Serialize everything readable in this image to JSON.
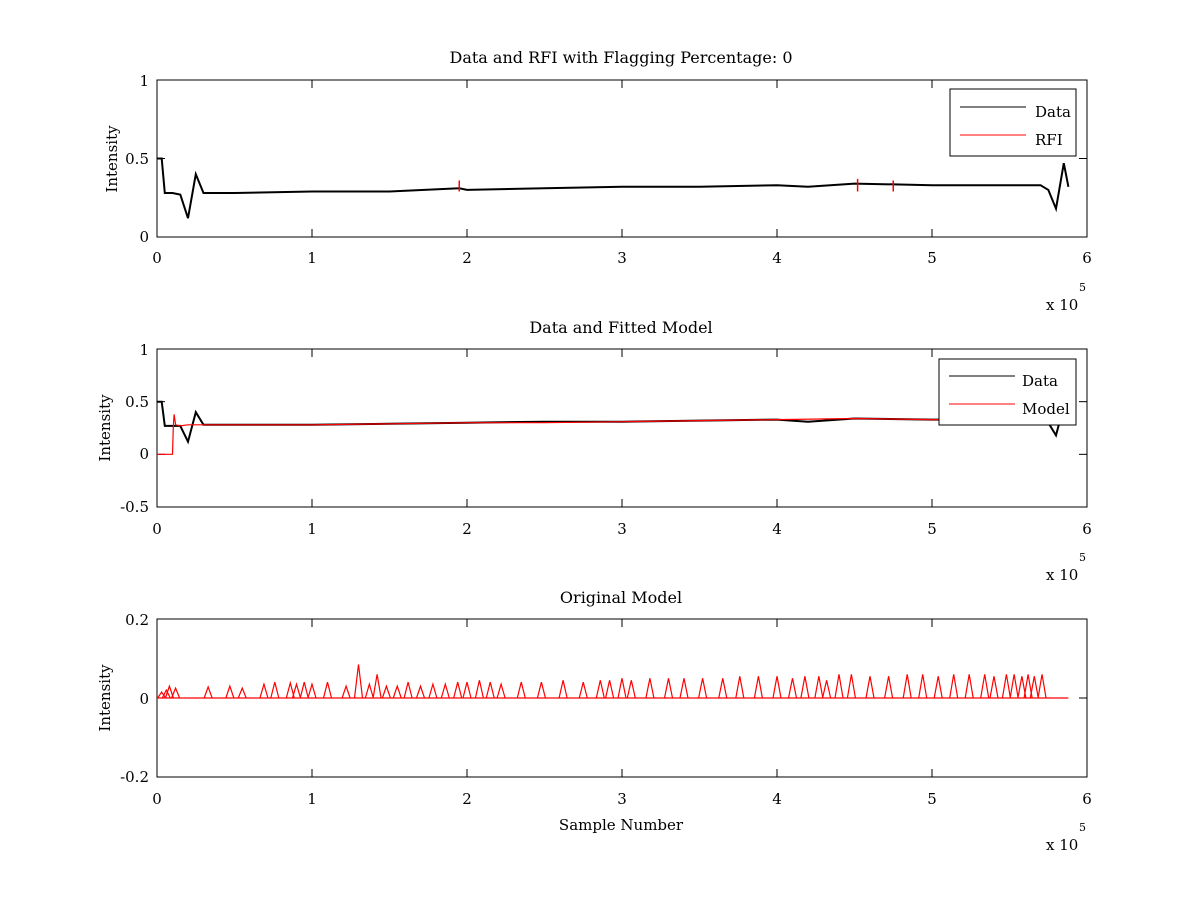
{
  "colors": {
    "data": "#000000",
    "rfi": "#ff0000",
    "axes": "#000000",
    "background": "#ffffff"
  },
  "chart_data": [
    {
      "type": "line",
      "title": "Data and RFI with Flagging Percentage: 0",
      "xlabel": "",
      "ylabel": "Intensity",
      "xlim": [
        0,
        600000
      ],
      "ylim": [
        0,
        1
      ],
      "x_ticks": [
        0,
        1,
        2,
        3,
        4,
        5,
        6
      ],
      "y_ticks": [
        "0",
        "0.5",
        "1"
      ],
      "y_tick_values": [
        0,
        0.5,
        1
      ],
      "x_exponent": {
        "base": "x 10",
        "power": "5"
      },
      "legend": {
        "placement": "top-right",
        "entries": [
          "Data",
          "RFI"
        ]
      },
      "grid": false,
      "series": [
        {
          "name": "Data",
          "color": "#000000",
          "x": [
            0,
            3000,
            5000,
            10000,
            15000,
            20000,
            25000,
            30000,
            50000,
            100000,
            150000,
            195000,
            200000,
            250000,
            300000,
            350000,
            400000,
            420000,
            450000,
            500000,
            550000,
            570000,
            575000,
            580000,
            585000,
            588000
          ],
          "y": [
            0.5,
            0.5,
            0.28,
            0.28,
            0.27,
            0.12,
            0.4,
            0.28,
            0.28,
            0.29,
            0.29,
            0.31,
            0.3,
            0.31,
            0.32,
            0.32,
            0.33,
            0.32,
            0.34,
            0.33,
            0.33,
            0.33,
            0.3,
            0.18,
            0.47,
            0.32
          ]
        },
        {
          "name": "RFI",
          "color": "#ff0000",
          "x": [
            195000,
            452000,
            475000
          ],
          "y": [
            0.36,
            0.37,
            0.36
          ]
        }
      ]
    },
    {
      "type": "line",
      "title": "Data and Fitted Model",
      "xlabel": "",
      "ylabel": "Intensity",
      "xlim": [
        0,
        600000
      ],
      "ylim": [
        -0.5,
        1
      ],
      "x_ticks": [
        0,
        1,
        2,
        3,
        4,
        5,
        6
      ],
      "y_ticks": [
        "-0.5",
        "0",
        "0.5",
        "1"
      ],
      "y_tick_values": [
        -0.5,
        0,
        0.5,
        1
      ],
      "x_exponent": {
        "base": "x 10",
        "power": "5"
      },
      "legend": {
        "placement": "top-right",
        "entries": [
          "Data",
          "Model"
        ]
      },
      "grid": false,
      "series": [
        {
          "name": "Data",
          "color": "#000000",
          "x": [
            0,
            3000,
            5000,
            10000,
            15000,
            20000,
            25000,
            30000,
            50000,
            100000,
            150000,
            200000,
            250000,
            300000,
            350000,
            400000,
            420000,
            450000,
            500000,
            550000,
            570000,
            575000,
            580000,
            585000,
            588000
          ],
          "y": [
            0.5,
            0.5,
            0.27,
            0.27,
            0.27,
            0.12,
            0.4,
            0.28,
            0.28,
            0.28,
            0.29,
            0.3,
            0.31,
            0.31,
            0.32,
            0.33,
            0.31,
            0.34,
            0.33,
            0.33,
            0.33,
            0.3,
            0.18,
            0.46,
            0.32
          ]
        },
        {
          "name": "Model",
          "color": "#ff0000",
          "x": [
            0,
            10000,
            10500,
            11000,
            12000,
            15000,
            20000,
            50000,
            100000,
            150000,
            200000,
            250000,
            300000,
            350000,
            400000,
            450000,
            500000,
            560000
          ],
          "y": [
            0.0,
            0.0,
            0.26,
            0.38,
            0.28,
            0.27,
            0.28,
            0.28,
            0.28,
            0.29,
            0.3,
            0.3,
            0.31,
            0.32,
            0.33,
            0.34,
            0.33,
            0.33
          ]
        }
      ]
    },
    {
      "type": "line",
      "title": "Original Model",
      "xlabel": "Sample Number",
      "ylabel": "Intensity",
      "xlim": [
        0,
        600000
      ],
      "ylim": [
        -0.2,
        0.2
      ],
      "x_ticks": [
        0,
        1,
        2,
        3,
        4,
        5,
        6
      ],
      "y_ticks": [
        "-0.2",
        "0",
        "0.2"
      ],
      "y_tick_values": [
        -0.2,
        0,
        0.2
      ],
      "x_exponent": {
        "base": "x 10",
        "power": "5"
      },
      "legend": null,
      "grid": false,
      "series": [
        {
          "color": "#ff0000",
          "x": [
            3000,
            6000,
            8000,
            12000,
            33000,
            47000,
            55000,
            69000,
            76000,
            86000,
            90000,
            95000,
            100000,
            110000,
            122000,
            130000,
            137000,
            142000,
            148000,
            155000,
            162000,
            170000,
            178000,
            186000,
            194000,
            200000,
            208000,
            215000,
            222000,
            235000,
            248000,
            262000,
            275000,
            286000,
            292000,
            300000,
            306000,
            318000,
            330000,
            340000,
            352000,
            365000,
            376000,
            388000,
            400000,
            410000,
            418000,
            427000,
            432000,
            440000,
            448000,
            460000,
            472000,
            484000,
            494000,
            504000,
            514000,
            524000,
            534000,
            540000,
            548000,
            553000,
            558000,
            562000,
            566000,
            571000
          ],
          "y": [
            0.015,
            0.02,
            0.03,
            0.025,
            0.028,
            0.03,
            0.025,
            0.035,
            0.04,
            0.038,
            0.035,
            0.04,
            0.035,
            0.04,
            0.03,
            0.085,
            0.035,
            0.06,
            0.03,
            0.03,
            0.04,
            0.03,
            0.035,
            0.035,
            0.04,
            0.04,
            0.045,
            0.04,
            0.035,
            0.04,
            0.04,
            0.045,
            0.04,
            0.045,
            0.045,
            0.05,
            0.045,
            0.05,
            0.05,
            0.05,
            0.05,
            0.05,
            0.055,
            0.055,
            0.055,
            0.05,
            0.055,
            0.055,
            0.045,
            0.06,
            0.06,
            0.055,
            0.055,
            0.06,
            0.06,
            0.055,
            0.06,
            0.06,
            0.06,
            0.055,
            0.06,
            0.06,
            0.055,
            0.06,
            0.055,
            0.06
          ]
        }
      ]
    }
  ]
}
